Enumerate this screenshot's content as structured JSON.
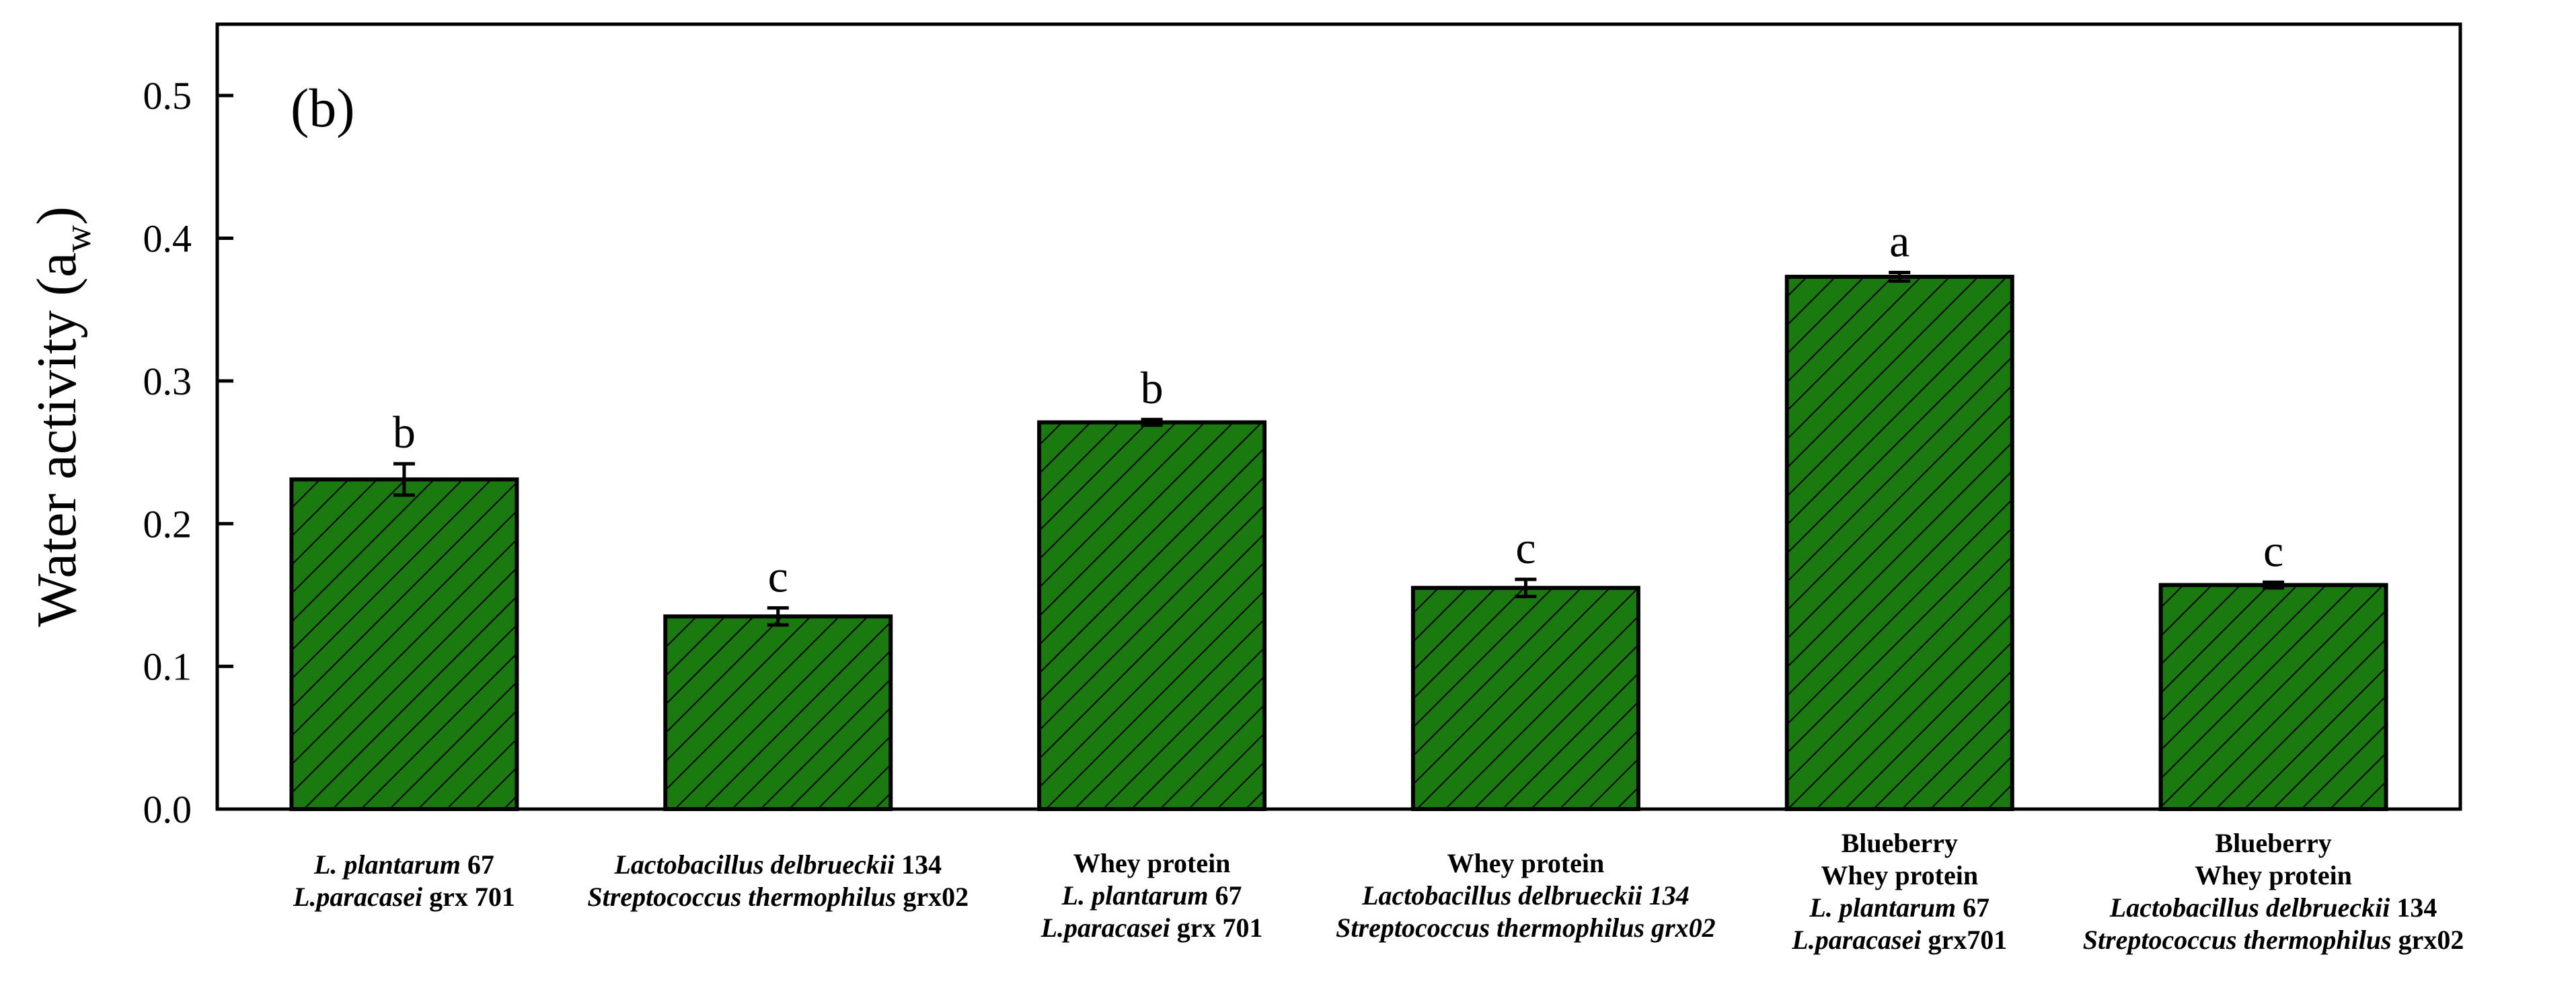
{
  "chart_data": {
    "type": "bar",
    "panel_label": "(b)",
    "ylabel": "Water activity (a",
    "ylabel_sub": "w",
    "ylabel_close": ")",
    "ylim": [
      0.0,
      0.55
    ],
    "yticks": [
      "0.0",
      "0.1",
      "0.2",
      "0.3",
      "0.4",
      "0.5"
    ],
    "ytick_values": [
      0.0,
      0.1,
      0.2,
      0.3,
      0.4,
      0.5
    ],
    "bar_color": "#1a7a10",
    "hatch": "diagonal",
    "values": [
      0.231,
      0.135,
      0.271,
      0.155,
      0.373,
      0.157
    ],
    "errors": [
      0.011,
      0.006,
      0.002,
      0.006,
      0.003,
      0.002
    ],
    "significance": [
      "b",
      "c",
      "b",
      "c",
      "a",
      "c"
    ],
    "categories": [
      [
        [
          {
            "t": "L. plantarum",
            "i": true
          },
          {
            "t": " 67",
            "i": false
          }
        ],
        [
          {
            "t": "L.paracasei",
            "i": true
          },
          {
            "t": " grx 701",
            "i": false
          }
        ]
      ],
      [
        [
          {
            "t": "Lactobacillus delbrueckii",
            "i": true
          },
          {
            "t": " 134",
            "i": false
          }
        ],
        [
          {
            "t": "Streptococcus thermophilus",
            "i": true
          },
          {
            "t": " grx02",
            "i": false
          }
        ]
      ],
      [
        [
          {
            "t": "Whey protein",
            "i": false
          }
        ],
        [
          {
            "t": "L. plantarum",
            "i": true
          },
          {
            "t": " 67",
            "i": false
          }
        ],
        [
          {
            "t": "L.paracasei",
            "i": true
          },
          {
            "t": " grx 701",
            "i": false
          }
        ]
      ],
      [
        [
          {
            "t": "Whey protein",
            "i": false
          }
        ],
        [
          {
            "t": "Lactobacillus delbrueckii 134",
            "i": true
          }
        ],
        [
          {
            "t": "Streptococcus thermophilus grx02",
            "i": true
          }
        ]
      ],
      [
        [
          {
            "t": "Blueberry",
            "i": false
          }
        ],
        [
          {
            "t": "Whey protein",
            "i": false
          }
        ],
        [
          {
            "t": "L. plantarum",
            "i": true
          },
          {
            "t": " 67",
            "i": false
          }
        ],
        [
          {
            "t": "L.paracasei",
            "i": true
          },
          {
            "t": "  grx701",
            "i": false
          }
        ]
      ],
      [
        [
          {
            "t": "Blueberry",
            "i": false
          }
        ],
        [
          {
            "t": "Whey protein",
            "i": false
          }
        ],
        [
          {
            "t": "Lactobacillus delbrueckii",
            "i": true
          },
          {
            "t": " 134",
            "i": false
          }
        ],
        [
          {
            "t": "Streptococcus thermophilus",
            "i": true
          },
          {
            "t": "  grx02",
            "i": false
          }
        ]
      ]
    ]
  }
}
